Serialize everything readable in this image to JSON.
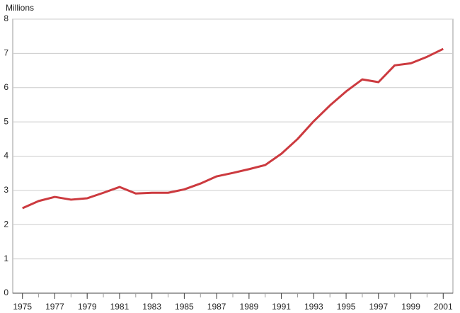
{
  "chart_data": {
    "type": "line",
    "y_axis_label": "Millions",
    "x": [
      1975,
      1976,
      1977,
      1978,
      1979,
      1980,
      1981,
      1982,
      1983,
      1984,
      1985,
      1986,
      1987,
      1988,
      1989,
      1990,
      1991,
      1992,
      1993,
      1994,
      1995,
      1996,
      1997,
      1998,
      1999,
      2000,
      2001
    ],
    "series": [
      {
        "color": "#cc3a3f",
        "values": [
          2.48,
          2.69,
          2.81,
          2.73,
          2.77,
          2.93,
          3.1,
          2.91,
          2.93,
          2.93,
          3.03,
          3.2,
          3.41,
          3.51,
          3.62,
          3.74,
          4.07,
          4.5,
          5.02,
          5.48,
          5.89,
          6.24,
          6.16,
          6.65,
          6.71,
          6.9,
          7.13
        ]
      }
    ],
    "xlim": [
      1974.4,
      2001.6
    ],
    "xticks": [
      1975,
      1977,
      1979,
      1981,
      1983,
      1985,
      1987,
      1989,
      1991,
      1993,
      1995,
      1997,
      1999,
      2001
    ],
    "ylim": [
      0,
      8
    ],
    "yticks": [
      0,
      1,
      2,
      3,
      4,
      5,
      6,
      7,
      8
    ],
    "grid": true
  }
}
